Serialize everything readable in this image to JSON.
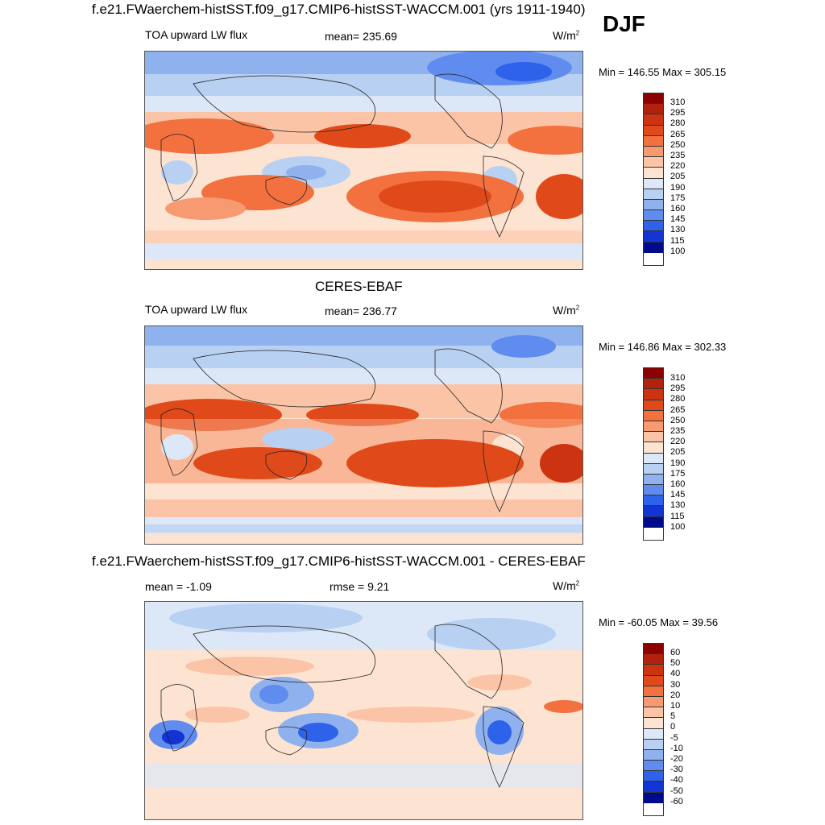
{
  "season": "DJF",
  "panels": [
    {
      "title": "f.e21.FWaerchem-histSST.f09_g17.CMIP6-histSST-WACCM.001 (yrs 1911-1940)",
      "left_label": "TOA upward LW flux",
      "center_label": "mean= 235.69",
      "units": "W/m",
      "units_sup": "2",
      "minmax": "Min = 146.55 Max = 305.15",
      "colorbar": [
        "310",
        "295",
        "280",
        "265",
        "250",
        "235",
        "220",
        "205",
        "190",
        "175",
        "160",
        "145",
        "130",
        "115",
        "100"
      ]
    },
    {
      "title": "CERES-EBAF",
      "left_label": "TOA upward LW flux",
      "center_label": "mean= 236.77",
      "units": "W/m",
      "units_sup": "2",
      "minmax": "Min = 146.86 Max = 302.33",
      "colorbar": [
        "310",
        "295",
        "280",
        "265",
        "250",
        "235",
        "220",
        "205",
        "190",
        "175",
        "160",
        "145",
        "130",
        "115",
        "100"
      ]
    },
    {
      "title": "f.e21.FWaerchem-histSST.f09_g17.CMIP6-histSST-WACCM.001 - CERES-EBAF",
      "left_label": "mean =  -1.09",
      "center_label": "rmse =   9.21",
      "units": "W/m",
      "units_sup": "2",
      "minmax": "Min = -60.05 Max =  39.56",
      "colorbar": [
        "60",
        "50",
        "40",
        "30",
        "20",
        "10",
        "5",
        "0",
        "-5",
        "-10",
        "-20",
        "-30",
        "-40",
        "-50",
        "-60"
      ]
    }
  ],
  "colors": {
    "abs_scale": [
      "#8b0000",
      "#b2210c",
      "#cc3311",
      "#e04a1a",
      "#f2713e",
      "#f79a72",
      "#fbc4a6",
      "#fde4d2",
      "#dce8f7",
      "#b8d0f1",
      "#8fb1ee",
      "#5f8cee",
      "#2f62ea",
      "#1234d4",
      "#000b8c"
    ],
    "diff_scale": [
      "#8b0000",
      "#b2210c",
      "#cc3311",
      "#e04a1a",
      "#f2713e",
      "#f79a72",
      "#fbc4a6",
      "#fde4d2",
      "#dce8f7",
      "#b8d0f1",
      "#8fb1ee",
      "#5f8cee",
      "#2f62ea",
      "#1234d4",
      "#000b8c"
    ]
  }
}
